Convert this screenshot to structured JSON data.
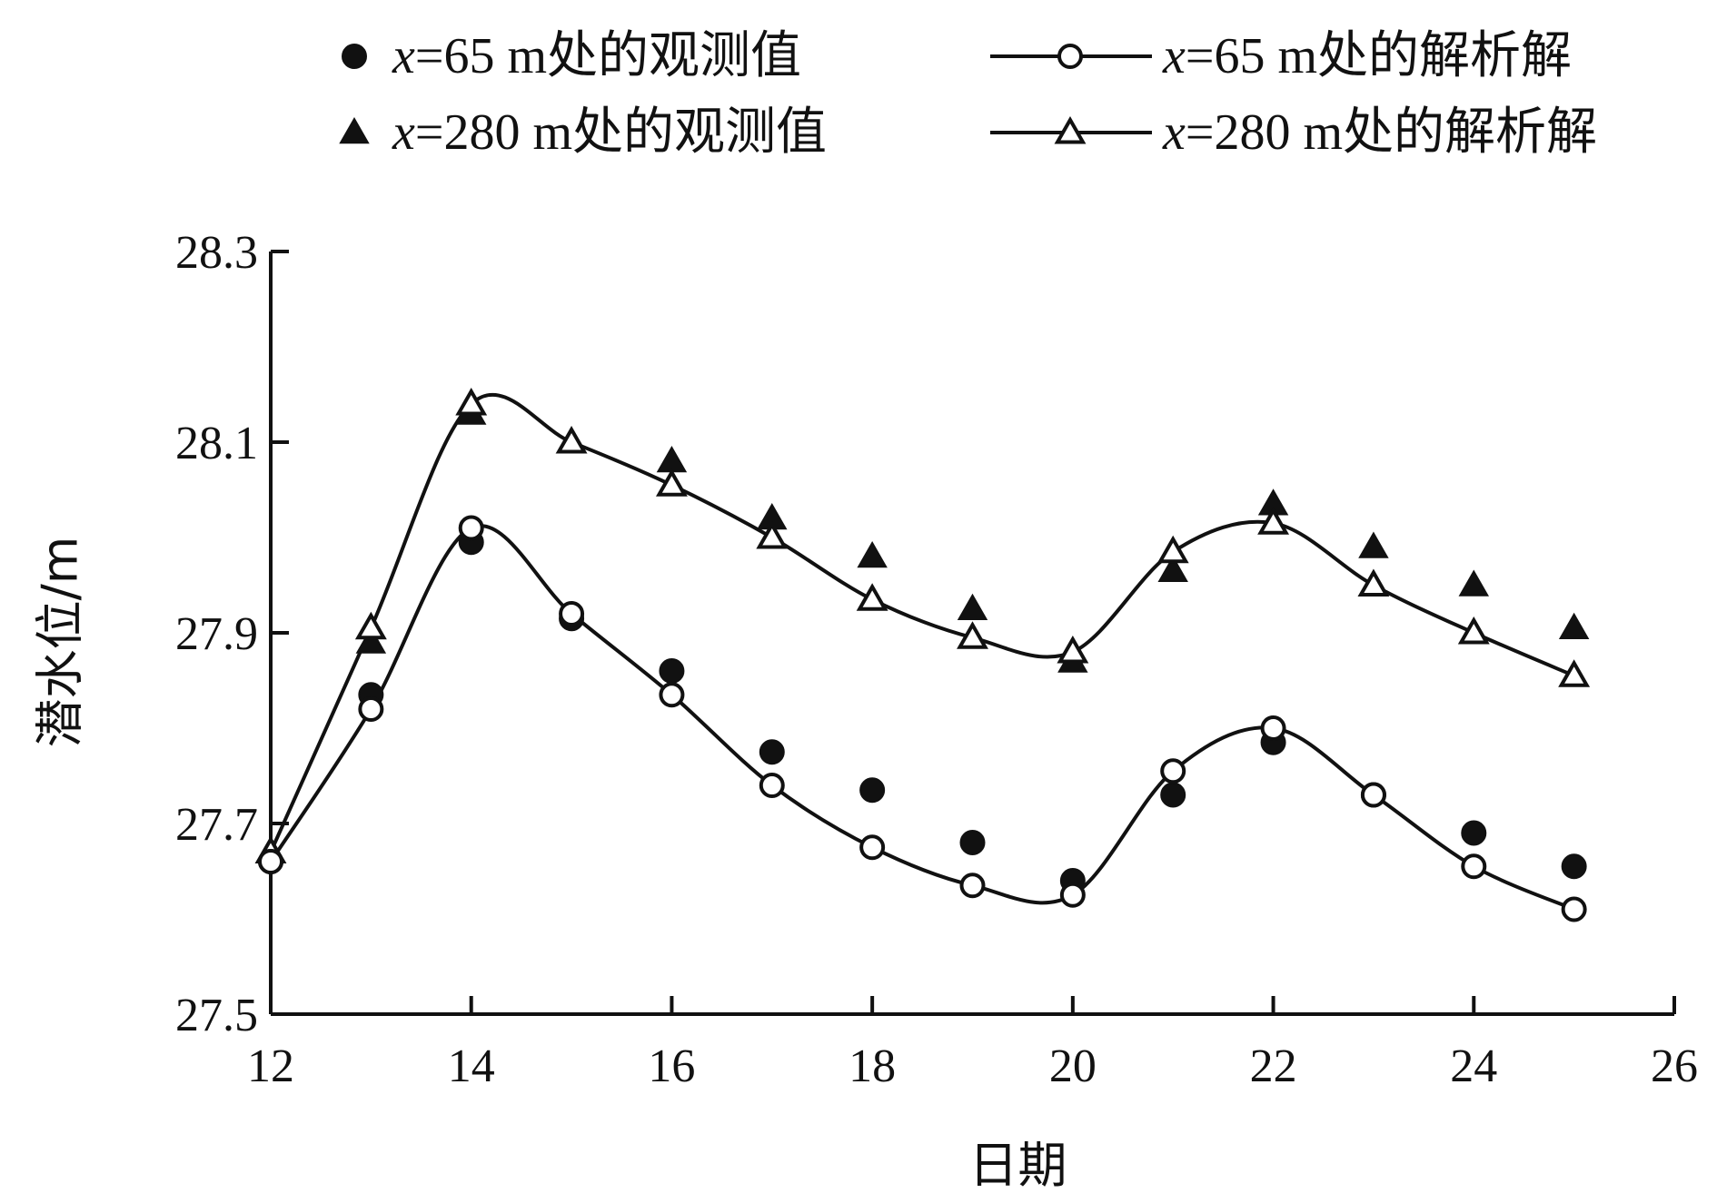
{
  "chart_data": {
    "type": "scatter",
    "xlabel": "日期",
    "ylabel": "潜水位/m",
    "xlim": [
      12,
      26
    ],
    "ylim": [
      27.5,
      28.3
    ],
    "xticks": [
      "12",
      "14",
      "16",
      "18",
      "20",
      "22",
      "24",
      "26"
    ],
    "yticks": [
      "27.5",
      "27.7",
      "27.9",
      "28.1",
      "28.3"
    ],
    "legend_position": "top",
    "series": [
      {
        "key": "obs65",
        "name_var": "x",
        "name_rest": "=65 m处的观测值",
        "marker": "filled-circle",
        "line": false,
        "x": [
          12,
          13,
          14,
          15,
          16,
          17,
          18,
          19,
          20,
          21,
          22,
          23,
          24,
          25
        ],
        "y": [
          27.66,
          27.835,
          27.995,
          27.915,
          27.86,
          27.775,
          27.735,
          27.68,
          27.64,
          27.73,
          27.785,
          27.73,
          27.69,
          27.655
        ]
      },
      {
        "key": "fit65",
        "name_var": "x",
        "name_rest": "=65 m处的解析解",
        "marker": "open-circle",
        "line": true,
        "x": [
          12,
          13,
          14,
          15,
          16,
          17,
          18,
          19,
          20,
          21,
          22,
          23,
          24,
          25
        ],
        "y": [
          27.66,
          27.82,
          28.01,
          27.92,
          27.835,
          27.74,
          27.675,
          27.635,
          27.625,
          27.755,
          27.8,
          27.73,
          27.655,
          27.61
        ]
      },
      {
        "key": "obs280",
        "name_var": "x",
        "name_rest": "=280 m处的观测值",
        "marker": "filled-triangle",
        "line": false,
        "x": [
          12,
          13,
          14,
          15,
          16,
          17,
          18,
          19,
          20,
          21,
          22,
          23,
          24,
          25
        ],
        "y": [
          27.67,
          27.89,
          28.13,
          28.1,
          28.08,
          28.02,
          27.98,
          27.925,
          27.87,
          27.965,
          28.035,
          27.99,
          27.95,
          27.905
        ]
      },
      {
        "key": "fit280",
        "name_var": "x",
        "name_rest": "=280 m处的解析解",
        "marker": "open-triangle",
        "line": true,
        "x": [
          12,
          13,
          14,
          15,
          16,
          17,
          18,
          19,
          20,
          21,
          22,
          23,
          24,
          25
        ],
        "y": [
          27.67,
          27.905,
          28.14,
          28.1,
          28.055,
          28.0,
          27.935,
          27.895,
          27.88,
          27.985,
          28.015,
          27.95,
          27.9,
          27.855
        ]
      }
    ]
  }
}
